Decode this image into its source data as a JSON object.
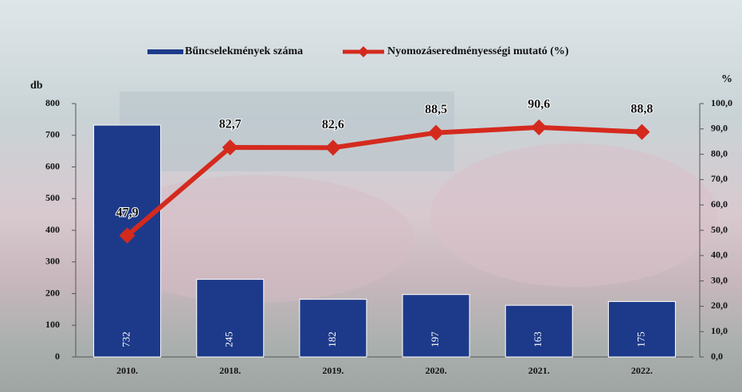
{
  "chart_data": {
    "type": "combo",
    "ylabel": "db",
    "y2label": "%",
    "categories": [
      "2010.",
      "2018.",
      "2019.",
      "2020.",
      "2021.",
      "2022."
    ],
    "series": [
      {
        "name": "Bűncselekmények száma",
        "type": "bar",
        "color": "#1d3a8a",
        "values": [
          732,
          245,
          182,
          197,
          163,
          175
        ]
      },
      {
        "name": "Nyomozáseredményességi mutató (%)",
        "type": "line",
        "axis": "y2",
        "color": "#d42a1e",
        "values": [
          47.9,
          82.7,
          82.6,
          88.5,
          90.6,
          88.8
        ],
        "value_labels": [
          "47,9",
          "82,7",
          "82,6",
          "88,5",
          "90,6",
          "88,8"
        ]
      }
    ],
    "ylim": [
      0,
      800
    ],
    "yticks": [
      0,
      100,
      200,
      300,
      400,
      500,
      600,
      700,
      800
    ],
    "y2lim": [
      0,
      100
    ],
    "y2ticks": [
      {
        "value": 0,
        "label": "0,0"
      },
      {
        "value": 10,
        "label": "10,0"
      },
      {
        "value": 20,
        "label": "20,0"
      },
      {
        "value": 30,
        "label": "30,0"
      },
      {
        "value": 40,
        "label": "40,0"
      },
      {
        "value": 50,
        "label": "50,0"
      },
      {
        "value": 60,
        "label": "60,0"
      },
      {
        "value": 70,
        "label": "70,0"
      },
      {
        "value": 80,
        "label": "80,0"
      },
      {
        "value": 90,
        "label": "90,0"
      },
      {
        "value": 100,
        "label": "100,0"
      }
    ]
  }
}
